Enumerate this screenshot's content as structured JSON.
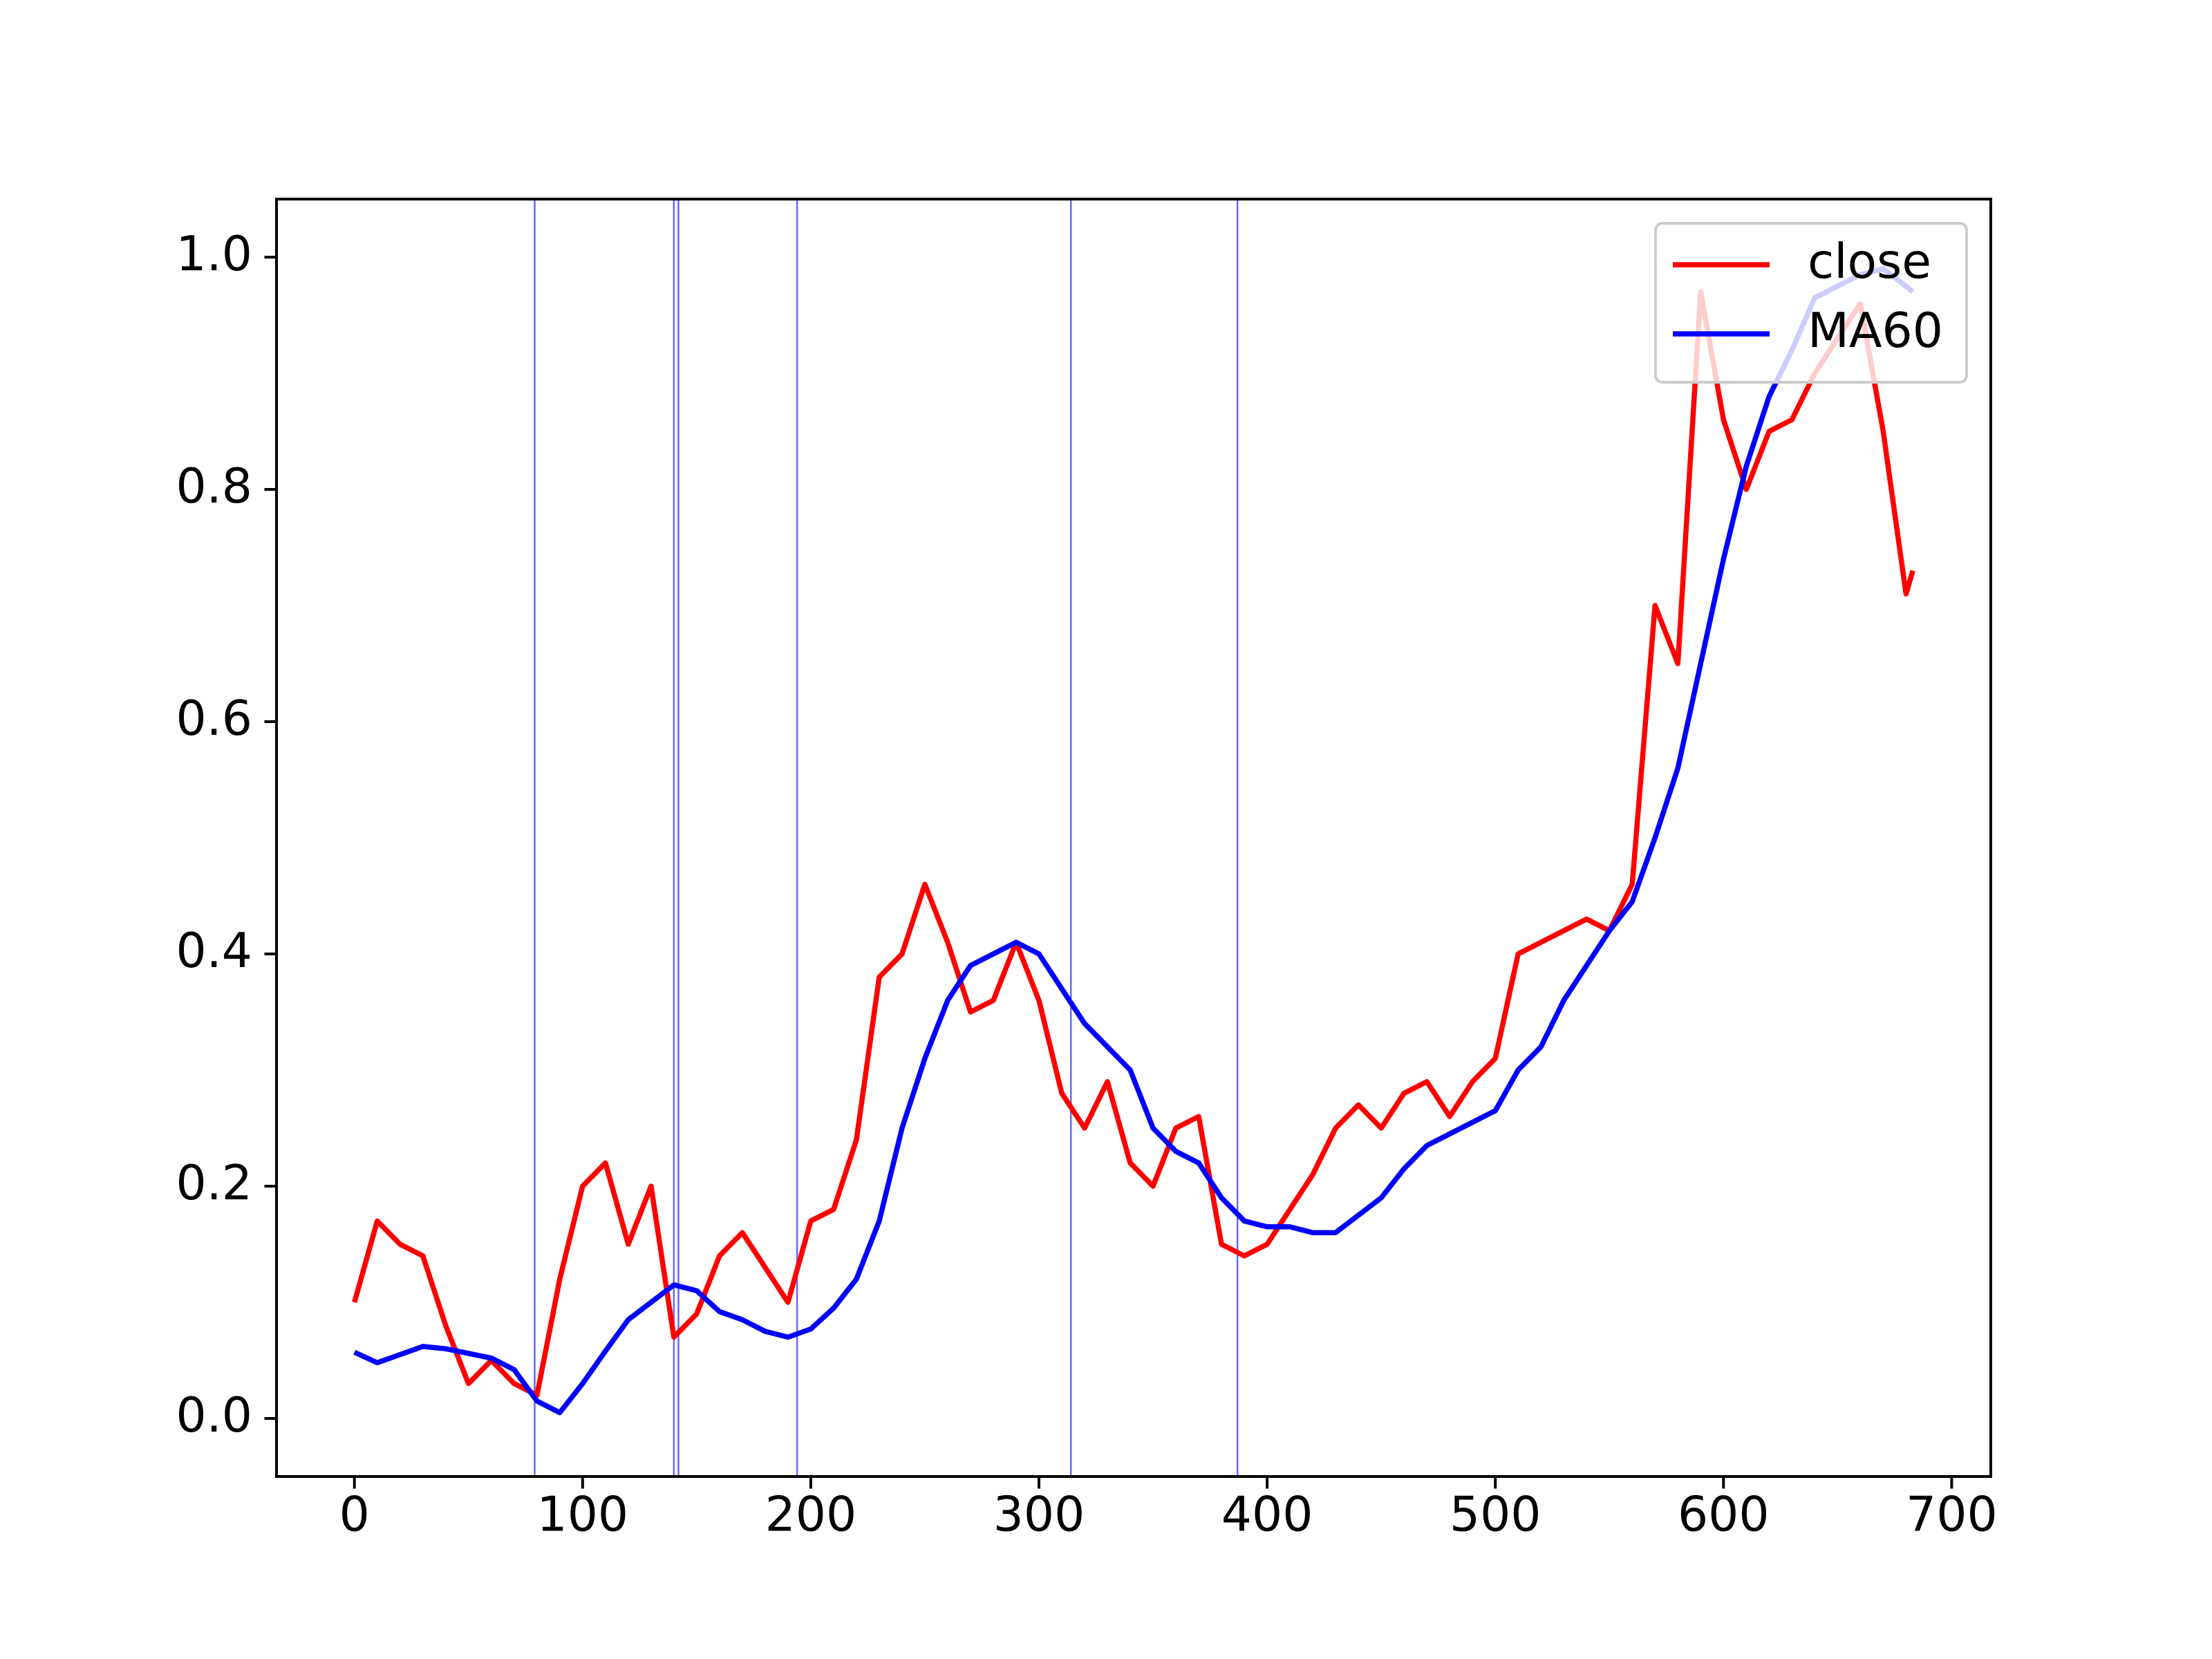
{
  "chart_data": {
    "type": "line",
    "x": [
      0,
      10,
      20,
      30,
      40,
      50,
      60,
      70,
      80,
      90,
      100,
      110,
      120,
      130,
      140,
      150,
      160,
      170,
      180,
      190,
      200,
      210,
      220,
      230,
      240,
      250,
      260,
      270,
      280,
      290,
      300,
      310,
      320,
      330,
      340,
      350,
      360,
      370,
      380,
      390,
      400,
      410,
      420,
      430,
      440,
      450,
      460,
      470,
      480,
      490,
      500,
      510,
      520,
      530,
      540,
      550,
      560,
      570,
      580,
      590,
      600,
      610,
      620,
      630,
      640,
      650,
      660,
      670,
      680,
      683
    ],
    "series": [
      {
        "name": "close",
        "color": "#ff0000",
        "values": [
          0.1,
          0.17,
          0.15,
          0.14,
          0.08,
          0.03,
          0.05,
          0.03,
          0.02,
          0.12,
          0.2,
          0.22,
          0.15,
          0.2,
          0.07,
          0.09,
          0.14,
          0.16,
          0.13,
          0.1,
          0.17,
          0.18,
          0.24,
          0.38,
          0.4,
          0.46,
          0.41,
          0.35,
          0.36,
          0.41,
          0.36,
          0.28,
          0.25,
          0.29,
          0.22,
          0.2,
          0.25,
          0.26,
          0.15,
          0.14,
          0.15,
          0.18,
          0.21,
          0.25,
          0.27,
          0.25,
          0.28,
          0.29,
          0.26,
          0.29,
          0.31,
          0.4,
          0.41,
          0.42,
          0.43,
          0.42,
          0.46,
          0.7,
          0.65,
          0.97,
          0.86,
          0.8,
          0.85,
          0.86,
          0.9,
          0.93,
          0.96,
          0.85,
          0.71,
          0.73
        ]
      },
      {
        "name": "MA60",
        "color": "#0000ff",
        "values": [
          0.057,
          0.048,
          0.055,
          0.062,
          0.06,
          0.056,
          0.052,
          0.042,
          0.015,
          0.005,
          0.03,
          0.058,
          0.085,
          0.1,
          0.115,
          0.11,
          0.092,
          0.085,
          0.075,
          0.07,
          0.077,
          0.095,
          0.12,
          0.17,
          0.25,
          0.31,
          0.36,
          0.39,
          0.4,
          0.41,
          0.4,
          0.37,
          0.34,
          0.32,
          0.3,
          0.25,
          0.23,
          0.22,
          0.19,
          0.17,
          0.165,
          0.165,
          0.16,
          0.16,
          0.175,
          0.19,
          0.215,
          0.235,
          0.245,
          0.255,
          0.265,
          0.3,
          0.32,
          0.36,
          0.39,
          0.42,
          0.445,
          0.5,
          0.56,
          0.65,
          0.74,
          0.82,
          0.88,
          0.92,
          0.965,
          0.975,
          0.985,
          0.99,
          0.975,
          0.97
        ]
      }
    ],
    "vlines": [
      79,
      140,
      142,
      194,
      314,
      387
    ],
    "vline_color": "#0000ff",
    "xlim": [
      -34.15,
      717.15
    ],
    "xticks": [
      0,
      100,
      200,
      300,
      400,
      500,
      600,
      700
    ],
    "ylim": [
      -0.05,
      1.05
    ],
    "yticks": [
      {
        "value": 0,
        "label": "0.0"
      },
      0.2,
      0.4,
      0.6,
      0.8,
      {
        "value": 1,
        "label": "1.0"
      }
    ],
    "legend": "upper right"
  }
}
